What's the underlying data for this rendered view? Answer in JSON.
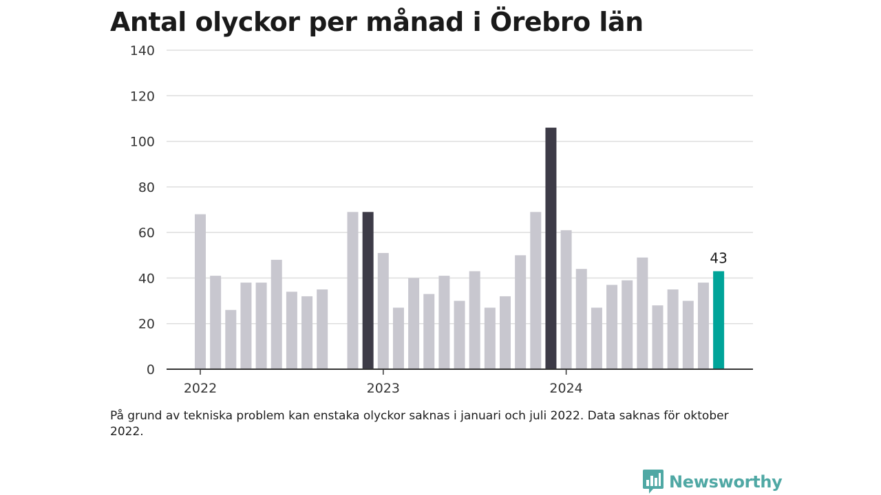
{
  "header": {
    "title": "Antal olyckor per månad i Örebro län"
  },
  "footer": {
    "note": "På grund av tekniska problem kan enstaka olyckor saknas i januari och juli 2022. Data saknas för oktober 2022.",
    "brand": "Newsworthy",
    "brand_icon": "bar-chart-speech-bubble-icon"
  },
  "colors": {
    "regular": "#c8c7cf",
    "january": "#3d3b47",
    "latest": "#00a499",
    "grid": "#dddddd",
    "axis": "#333333"
  },
  "chart_data": {
    "type": "bar",
    "title": "Antal olyckor per månad i Örebro län",
    "xlabel": "",
    "ylabel": "",
    "ylim": [
      0,
      140
    ],
    "yticks": [
      0,
      20,
      40,
      60,
      80,
      100,
      120,
      140
    ],
    "xtick_labels": [
      {
        "label": "2022",
        "month": "2022-01"
      },
      {
        "label": "2023",
        "month": "2023-01"
      },
      {
        "label": "2024",
        "month": "2024-01"
      }
    ],
    "grid": true,
    "months": [
      "2022-01",
      "2022-02",
      "2022-03",
      "2022-04",
      "2022-05",
      "2022-06",
      "2022-07",
      "2022-08",
      "2022-09",
      "2022-10",
      "2022-11",
      "2022-12",
      "2023-01",
      "2023-02",
      "2023-03",
      "2023-04",
      "2023-05",
      "2023-06",
      "2023-07",
      "2023-08",
      "2023-09",
      "2023-10",
      "2023-11",
      "2023-12",
      "2024-01",
      "2024-02",
      "2024-03",
      "2024-04",
      "2024-05",
      "2024-06",
      "2024-07",
      "2024-08",
      "2024-09",
      "2024-10",
      "2024-11",
      "2024-12"
    ],
    "values": [
      68,
      41,
      26,
      38,
      38,
      48,
      34,
      32,
      35,
      null,
      69,
      69,
      51,
      27,
      40,
      33,
      41,
      30,
      43,
      27,
      32,
      50,
      69,
      106,
      61,
      44,
      27,
      37,
      39,
      49,
      28,
      35,
      30,
      38,
      43,
      null
    ],
    "highlight": {
      "month": "2024-11",
      "value": 43,
      "label": "43"
    }
  }
}
